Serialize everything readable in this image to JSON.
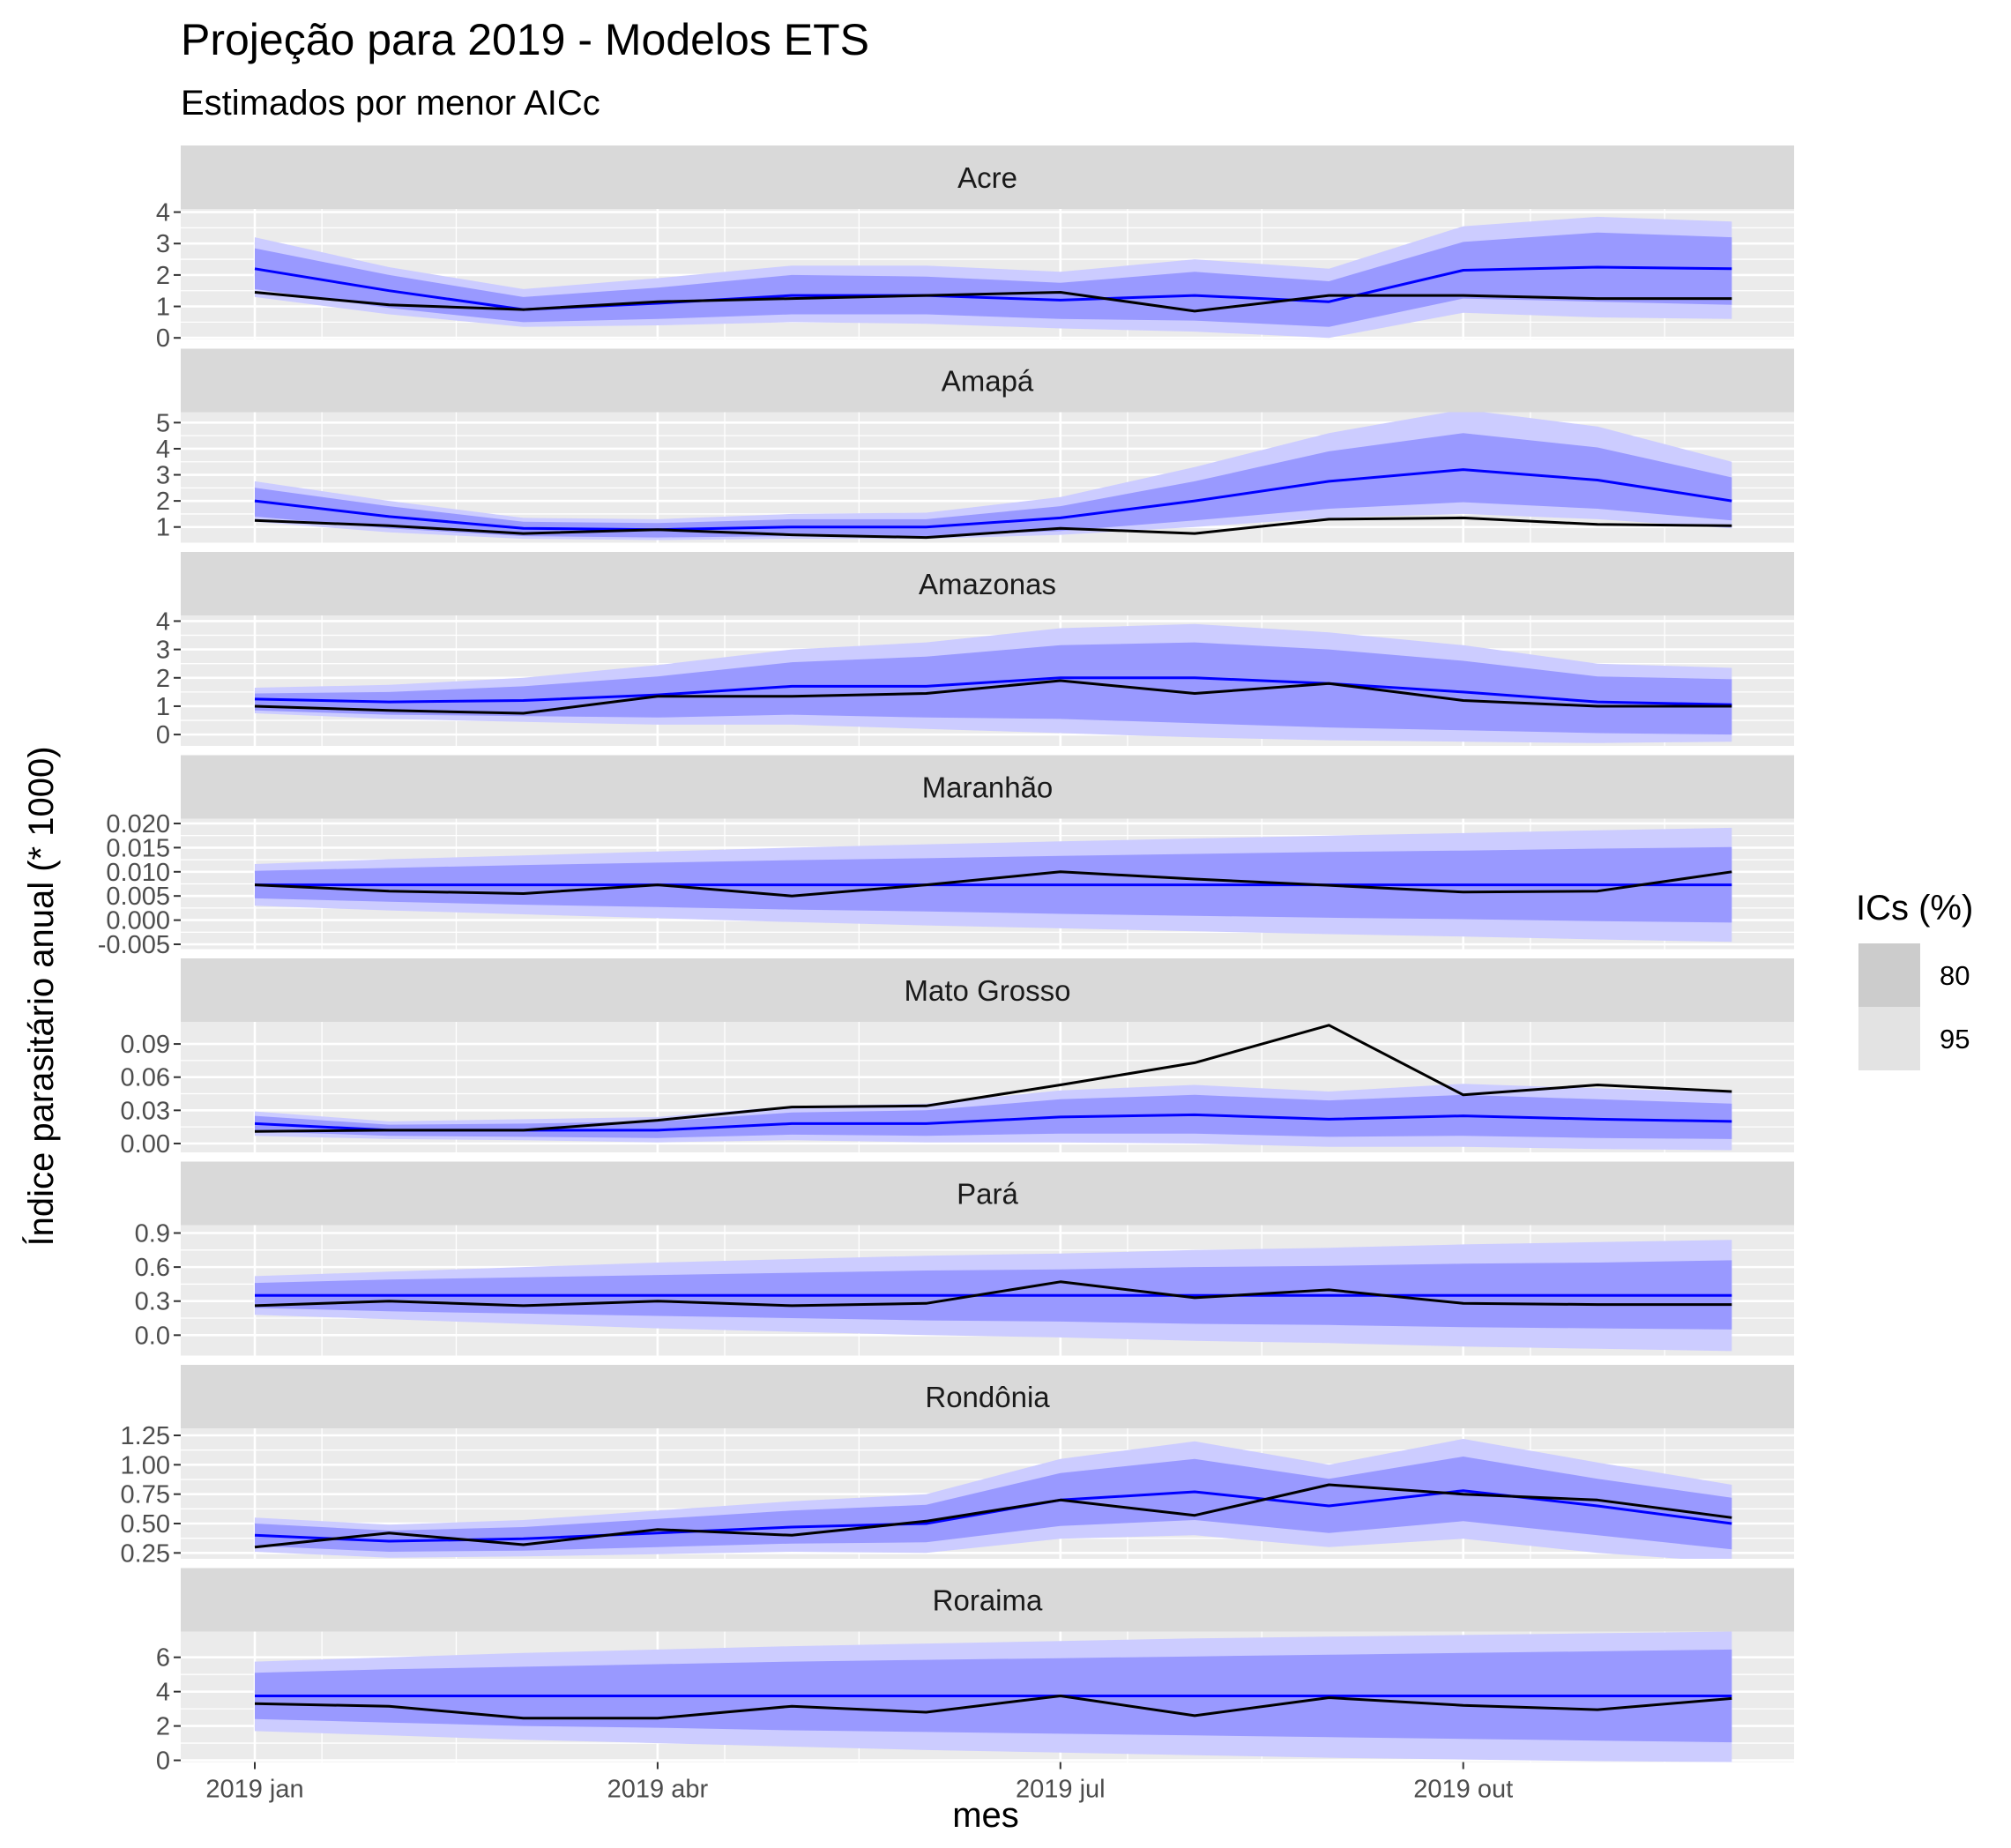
{
  "chart_data": {
    "type": "line",
    "title": "Projeção para 2019 - Modelos ETS",
    "subtitle": "Estimados por menor AICc",
    "xlabel": "mes",
    "ylabel": "Índice parasitário anual (* 1000)",
    "x": [
      "2019-01",
      "2019-02",
      "2019-03",
      "2019-04",
      "2019-05",
      "2019-06",
      "2019-07",
      "2019-08",
      "2019-09",
      "2019-10",
      "2019-11",
      "2019-12"
    ],
    "x_tick_labels": [
      "2019 jan",
      "2019 abr",
      "2019 jul",
      "2019 out"
    ],
    "x_tick_index": [
      0,
      3,
      6,
      9
    ],
    "colors": {
      "forecast_line": "#0000ff",
      "observed_line": "#000000",
      "band_80": "#9999ff",
      "band_95": "#ccccff",
      "panel_bg": "#ebebeb",
      "strip_bg": "#d9d9d9",
      "legend_key_80": "#cccccc",
      "legend_key_95": "#e3e3e3"
    },
    "legend": {
      "title": "ICs (%)",
      "position": "right",
      "entries": [
        "80",
        "95"
      ]
    },
    "grid": true,
    "panels": [
      {
        "name": "Acre",
        "ylim": [
          -0.05,
          4.1
        ],
        "y_ticks": [
          0,
          1,
          2,
          3,
          4
        ],
        "y_tick_labels": [
          "0",
          "1",
          "2",
          "3",
          "4"
        ],
        "forecast": [
          2.2,
          1.5,
          0.9,
          1.1,
          1.35,
          1.35,
          1.2,
          1.35,
          1.15,
          2.15,
          2.25,
          2.2
        ],
        "lo80": [
          1.55,
          0.95,
          0.5,
          0.6,
          0.75,
          0.75,
          0.6,
          0.55,
          0.35,
          1.25,
          1.15,
          1.05
        ],
        "hi80": [
          2.85,
          2.0,
          1.3,
          1.6,
          2.0,
          1.95,
          1.75,
          2.1,
          1.8,
          3.05,
          3.35,
          3.2
        ],
        "lo95": [
          1.3,
          0.75,
          0.35,
          0.4,
          0.5,
          0.45,
          0.3,
          0.2,
          0.0,
          0.8,
          0.65,
          0.6
        ],
        "hi95": [
          3.2,
          2.25,
          1.55,
          1.9,
          2.3,
          2.3,
          2.1,
          2.5,
          2.2,
          3.55,
          3.85,
          3.7
        ],
        "observed": [
          1.45,
          1.05,
          0.9,
          1.15,
          1.25,
          1.35,
          1.45,
          0.85,
          1.35,
          1.35,
          1.25,
          1.25
        ]
      },
      {
        "name": "Amapá",
        "ylim": [
          0.4,
          5.4
        ],
        "y_ticks": [
          1,
          2,
          3,
          4,
          5
        ],
        "y_tick_labels": [
          "1",
          "2",
          "3",
          "4",
          "5"
        ],
        "forecast": [
          2.0,
          1.4,
          0.95,
          0.9,
          1.0,
          1.0,
          1.35,
          2.0,
          2.75,
          3.2,
          2.8,
          2.0
        ],
        "lo80": [
          1.4,
          0.95,
          0.65,
          0.6,
          0.65,
          0.65,
          0.85,
          1.25,
          1.7,
          1.95,
          1.7,
          1.25
        ],
        "hi80": [
          2.5,
          1.8,
          1.2,
          1.15,
          1.3,
          1.3,
          1.8,
          2.75,
          3.9,
          4.6,
          4.05,
          2.9
        ],
        "lo95": [
          1.2,
          0.8,
          0.55,
          0.5,
          0.55,
          0.55,
          0.7,
          1.0,
          1.35,
          1.5,
          1.3,
          0.95
        ],
        "hi95": [
          2.75,
          2.0,
          1.35,
          1.3,
          1.5,
          1.55,
          2.15,
          3.3,
          4.6,
          5.5,
          4.85,
          3.5
        ],
        "observed": [
          1.25,
          1.05,
          0.75,
          0.9,
          0.7,
          0.6,
          0.95,
          0.75,
          1.3,
          1.35,
          1.1,
          1.05
        ]
      },
      {
        "name": "Amazonas",
        "ylim": [
          -0.4,
          4.2
        ],
        "y_ticks": [
          0,
          1,
          2,
          3,
          4
        ],
        "y_tick_labels": [
          "0",
          "1",
          "2",
          "3",
          "4"
        ],
        "forecast": [
          1.25,
          1.15,
          1.2,
          1.4,
          1.7,
          1.7,
          2.0,
          2.0,
          1.8,
          1.5,
          1.15,
          1.05
        ],
        "lo80": [
          0.85,
          0.7,
          0.65,
          0.6,
          0.7,
          0.6,
          0.55,
          0.4,
          0.25,
          0.15,
          0.05,
          0.0
        ],
        "hi80": [
          1.45,
          1.5,
          1.7,
          2.05,
          2.55,
          2.75,
          3.15,
          3.25,
          3.0,
          2.6,
          2.05,
          1.95
        ],
        "lo95": [
          0.75,
          0.55,
          0.45,
          0.35,
          0.35,
          0.2,
          0.05,
          -0.1,
          -0.2,
          -0.25,
          -0.3,
          -0.25
        ],
        "hi95": [
          1.65,
          1.75,
          2.0,
          2.45,
          3.0,
          3.25,
          3.75,
          3.9,
          3.6,
          3.15,
          2.5,
          2.35
        ],
        "observed": [
          1.0,
          0.85,
          0.75,
          1.35,
          1.35,
          1.45,
          1.9,
          1.45,
          1.8,
          1.2,
          1.0,
          1.0
        ]
      },
      {
        "name": "Maranhão",
        "ylim": [
          -0.006,
          0.021
        ],
        "y_ticks": [
          -0.005,
          0.0,
          0.005,
          0.01,
          0.015,
          0.02
        ],
        "y_tick_labels": [
          "-0.005",
          "0.000",
          "0.005",
          "0.010",
          "0.015",
          "0.020"
        ],
        "forecast": [
          0.0073,
          0.0073,
          0.0073,
          0.0073,
          0.0073,
          0.0073,
          0.0073,
          0.0073,
          0.0073,
          0.0073,
          0.0073,
          0.0073
        ],
        "lo80": [
          0.0045,
          0.0038,
          0.0032,
          0.0027,
          0.0022,
          0.0018,
          0.0013,
          0.0009,
          0.0005,
          0.0002,
          -0.0002,
          -0.0005
        ],
        "hi80": [
          0.0102,
          0.0108,
          0.0114,
          0.0119,
          0.0124,
          0.0128,
          0.0133,
          0.0137,
          0.0141,
          0.0144,
          0.0148,
          0.0151
        ],
        "lo95": [
          0.003,
          0.002,
          0.0012,
          0.0004,
          -0.0004,
          -0.0011,
          -0.0017,
          -0.0023,
          -0.0029,
          -0.0034,
          -0.004,
          -0.0045
        ],
        "hi95": [
          0.0116,
          0.0126,
          0.0134,
          0.0142,
          0.015,
          0.0157,
          0.0163,
          0.0169,
          0.0175,
          0.018,
          0.0186,
          0.0191
        ],
        "observed": [
          0.0073,
          0.006,
          0.0055,
          0.0073,
          0.005,
          0.0073,
          0.01,
          0.0085,
          0.0072,
          0.0058,
          0.006,
          0.01
        ]
      },
      {
        "name": "Mato Grosso",
        "ylim": [
          -0.008,
          0.11
        ],
        "y_ticks": [
          0.0,
          0.03,
          0.06,
          0.09
        ],
        "y_tick_labels": [
          "0.00",
          "0.03",
          "0.06",
          "0.09"
        ],
        "forecast": [
          0.018,
          0.012,
          0.012,
          0.012,
          0.018,
          0.018,
          0.024,
          0.026,
          0.022,
          0.025,
          0.022,
          0.02
        ],
        "lo80": [
          0.011,
          0.007,
          0.006,
          0.005,
          0.008,
          0.007,
          0.009,
          0.009,
          0.006,
          0.007,
          0.005,
          0.004
        ],
        "hi80": [
          0.025,
          0.017,
          0.018,
          0.02,
          0.028,
          0.03,
          0.04,
          0.044,
          0.039,
          0.044,
          0.04,
          0.036
        ],
        "lo95": [
          0.007,
          0.004,
          0.003,
          0.001,
          0.003,
          0.001,
          0.001,
          0.0,
          -0.003,
          -0.003,
          -0.005,
          -0.006
        ],
        "hi95": [
          0.029,
          0.02,
          0.022,
          0.024,
          0.034,
          0.036,
          0.048,
          0.053,
          0.047,
          0.054,
          0.05,
          0.046
        ],
        "observed": [
          0.011,
          0.012,
          0.012,
          0.021,
          0.033,
          0.034,
          0.053,
          0.073,
          0.107,
          0.044,
          0.053,
          0.047
        ]
      },
      {
        "name": "Pará",
        "ylim": [
          -0.18,
          0.97
        ],
        "y_ticks": [
          0.0,
          0.3,
          0.6,
          0.9
        ],
        "y_tick_labels": [
          "0.0",
          "0.3",
          "0.6",
          "0.9"
        ],
        "forecast": [
          0.35,
          0.35,
          0.35,
          0.35,
          0.35,
          0.35,
          0.35,
          0.35,
          0.35,
          0.35,
          0.35,
          0.35
        ],
        "lo80": [
          0.24,
          0.21,
          0.19,
          0.17,
          0.15,
          0.13,
          0.12,
          0.1,
          0.09,
          0.07,
          0.06,
          0.05
        ],
        "hi80": [
          0.46,
          0.49,
          0.51,
          0.53,
          0.55,
          0.57,
          0.58,
          0.6,
          0.61,
          0.63,
          0.64,
          0.66
        ],
        "lo95": [
          0.18,
          0.14,
          0.1,
          0.06,
          0.03,
          0.0,
          -0.02,
          -0.05,
          -0.07,
          -0.1,
          -0.12,
          -0.14
        ],
        "hi95": [
          0.52,
          0.56,
          0.6,
          0.64,
          0.67,
          0.7,
          0.72,
          0.75,
          0.77,
          0.8,
          0.82,
          0.84
        ],
        "observed": [
          0.26,
          0.3,
          0.26,
          0.3,
          0.26,
          0.28,
          0.47,
          0.33,
          0.4,
          0.28,
          0.27,
          0.27
        ]
      },
      {
        "name": "Rondônia",
        "ylim": [
          0.2,
          1.31
        ],
        "y_ticks": [
          0.25,
          0.5,
          0.75,
          1.0,
          1.25
        ],
        "y_tick_labels": [
          "0.25",
          "0.50",
          "0.75",
          "1.00",
          "1.25"
        ],
        "forecast": [
          0.4,
          0.35,
          0.37,
          0.42,
          0.47,
          0.5,
          0.7,
          0.77,
          0.65,
          0.78,
          0.65,
          0.5
        ],
        "lo80": [
          0.31,
          0.26,
          0.27,
          0.3,
          0.33,
          0.34,
          0.48,
          0.53,
          0.42,
          0.52,
          0.4,
          0.28
        ],
        "hi80": [
          0.5,
          0.44,
          0.47,
          0.54,
          0.61,
          0.66,
          0.93,
          1.05,
          0.88,
          1.07,
          0.88,
          0.72
        ],
        "lo95": [
          0.26,
          0.21,
          0.22,
          0.24,
          0.26,
          0.25,
          0.37,
          0.4,
          0.3,
          0.37,
          0.25,
          0.17
        ],
        "hi95": [
          0.55,
          0.49,
          0.53,
          0.61,
          0.69,
          0.75,
          1.05,
          1.2,
          1.0,
          1.22,
          1.02,
          0.83
        ],
        "observed": [
          0.3,
          0.42,
          0.32,
          0.45,
          0.4,
          0.52,
          0.7,
          0.57,
          0.83,
          0.75,
          0.7,
          0.55
        ]
      },
      {
        "name": "Roraima",
        "ylim": [
          -0.1,
          7.5
        ],
        "y_ticks": [
          0,
          2,
          4,
          6
        ],
        "y_tick_labels": [
          "0",
          "2",
          "4",
          "6"
        ],
        "forecast": [
          3.75,
          3.75,
          3.75,
          3.75,
          3.75,
          3.75,
          3.75,
          3.75,
          3.75,
          3.75,
          3.75,
          3.75
        ],
        "lo80": [
          2.4,
          2.2,
          2.0,
          1.9,
          1.75,
          1.65,
          1.55,
          1.45,
          1.35,
          1.25,
          1.15,
          1.05
        ],
        "hi80": [
          5.1,
          5.3,
          5.45,
          5.6,
          5.75,
          5.85,
          5.95,
          6.05,
          6.15,
          6.25,
          6.35,
          6.45
        ],
        "lo95": [
          1.7,
          1.45,
          1.2,
          1.0,
          0.8,
          0.6,
          0.45,
          0.3,
          0.15,
          0.05,
          -0.05,
          -0.1
        ],
        "hi95": [
          5.75,
          6.0,
          6.25,
          6.45,
          6.65,
          6.8,
          6.95,
          7.1,
          7.2,
          7.3,
          7.4,
          7.5
        ],
        "observed": [
          3.3,
          3.15,
          2.45,
          2.45,
          3.15,
          2.8,
          3.75,
          2.6,
          3.65,
          3.2,
          2.95,
          3.6
        ]
      }
    ]
  }
}
